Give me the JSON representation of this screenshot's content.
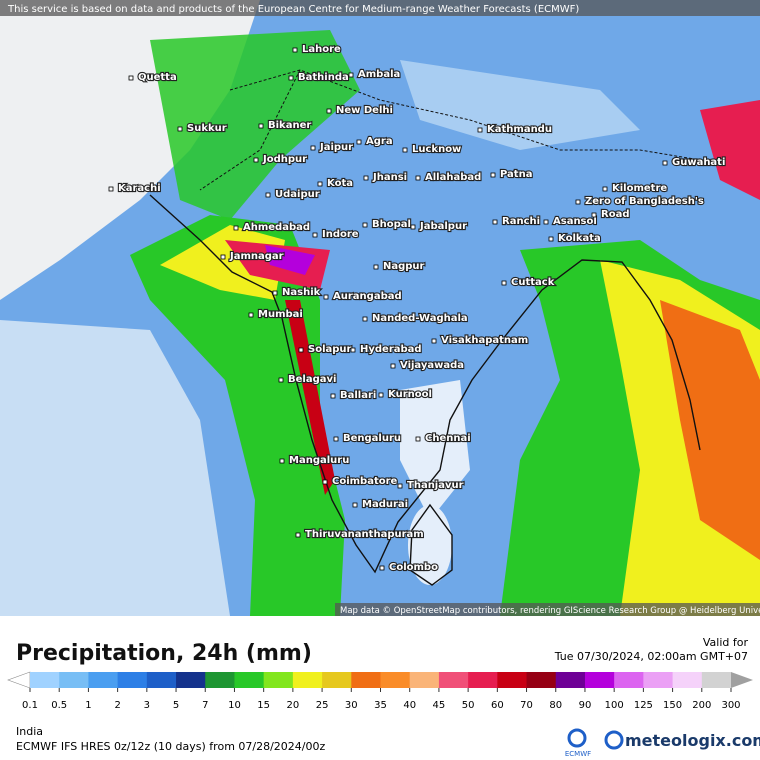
{
  "header": {
    "notice": "This service is based on data and products of the European Centre for Medium-range Weather Forecasts (ECMWF)",
    "attribution": "Map data © OpenStreetMap contributors, rendering GIScience Research Group @ Heidelberg University"
  },
  "map": {
    "places": [
      "Lahore",
      "Bathinda",
      "Ambala",
      "Quetta",
      "New Delhi",
      "Bikaner",
      "Sukkur",
      "Kathmandu",
      "Jaipur",
      "Agra",
      "Lucknow",
      "Jodhpur",
      "Guwahati",
      "Jhansi",
      "Allahabad",
      "Patna",
      "Kota",
      "Karachi",
      "Udaipur",
      "Ranchi",
      "Asansol",
      "Kolkata",
      "Bhopal",
      "Jabalpur",
      "Indore",
      "Ahmedabad",
      "Jamnagar",
      "Nagpur",
      "Cuttack",
      "Nashik",
      "Aurangabad",
      "Mumbai",
      "Nanded-Waghala",
      "Visakhapatnam",
      "Solapur",
      "Hyderabad",
      "Vijayawada",
      "Belagavi",
      "Ballari",
      "Kurnool",
      "Bengaluru",
      "Chennai",
      "Mangaluru",
      "Coimbatore",
      "Thanjavur",
      "Madurai",
      "Thiruvananthapuram",
      "Colombo",
      "Kilometre",
      "Zero of Bangladesh's",
      "Road"
    ]
  },
  "footer": {
    "title": "Precipitation, 24h (mm)",
    "valid_label": "Valid for",
    "valid_time": "Tue 07/30/2024, 02:00am GMT+07",
    "region": "India",
    "model": "ECMWF IFS HRES 0z/12z (10 days) from  07/28/2024/00z",
    "ecmwf": "ECMWF",
    "brand": "meteologix.com"
  },
  "legend": {
    "labels": [
      0.1,
      0.5,
      1,
      2,
      3,
      5,
      7,
      10,
      15,
      20,
      25,
      30,
      35,
      40,
      45,
      50,
      60,
      70,
      80,
      90,
      100,
      125,
      150,
      200,
      300
    ],
    "colors": [
      "#ffffff",
      "#a0d2ff",
      "#78bef5",
      "#4a9ef0",
      "#2d7fe6",
      "#1e5fc8",
      "#14328c",
      "#1e9632",
      "#28c828",
      "#82e61e",
      "#f0f01e",
      "#e6c81e",
      "#f06e14",
      "#fa8c28",
      "#fab478",
      "#f05078",
      "#e61e50",
      "#c80014",
      "#960014",
      "#6e0096",
      "#b400dc",
      "#dc64f0",
      "#eba0f5",
      "#f5d2fa",
      "#d2d2d2",
      "#a0a0a0"
    ]
  }
}
